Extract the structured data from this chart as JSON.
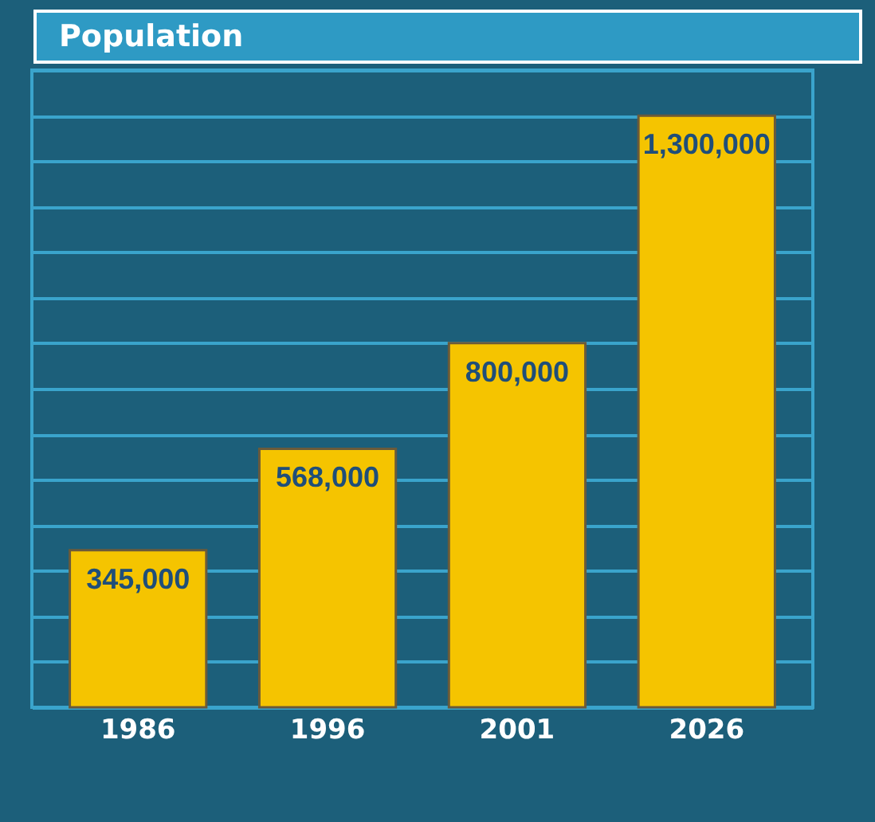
{
  "chart_data": {
    "type": "bar",
    "title": "Population",
    "categories": [
      "1986",
      "1996",
      "2001",
      "2026"
    ],
    "values": [
      345000,
      568000,
      800000,
      1300000
    ],
    "value_labels": [
      "345,000",
      "568,000",
      "800,000",
      "1,300,000"
    ],
    "color": "#f5c400",
    "grid": "y",
    "tick_labels": "x",
    "ylim": [
      0,
      1400000
    ],
    "yticks": [
      {
        "value": 0,
        "label": null
      },
      {
        "value": 100000,
        "label": null
      },
      {
        "value": 200000,
        "label": null
      },
      {
        "value": 300000,
        "label": null
      },
      {
        "value": 400000,
        "label": null
      },
      {
        "value": 500000,
        "label": null
      },
      {
        "value": 600000,
        "label": null
      },
      {
        "value": 700000,
        "label": null
      },
      {
        "value": 800000,
        "label": null
      },
      {
        "value": 900000,
        "label": null
      },
      {
        "value": 1000000,
        "label": null
      },
      {
        "value": 1100000,
        "label": null
      },
      {
        "value": 1200000,
        "label": null
      },
      {
        "value": 1300000,
        "label": null
      },
      {
        "value": 1400000,
        "label": null
      }
    ]
  }
}
